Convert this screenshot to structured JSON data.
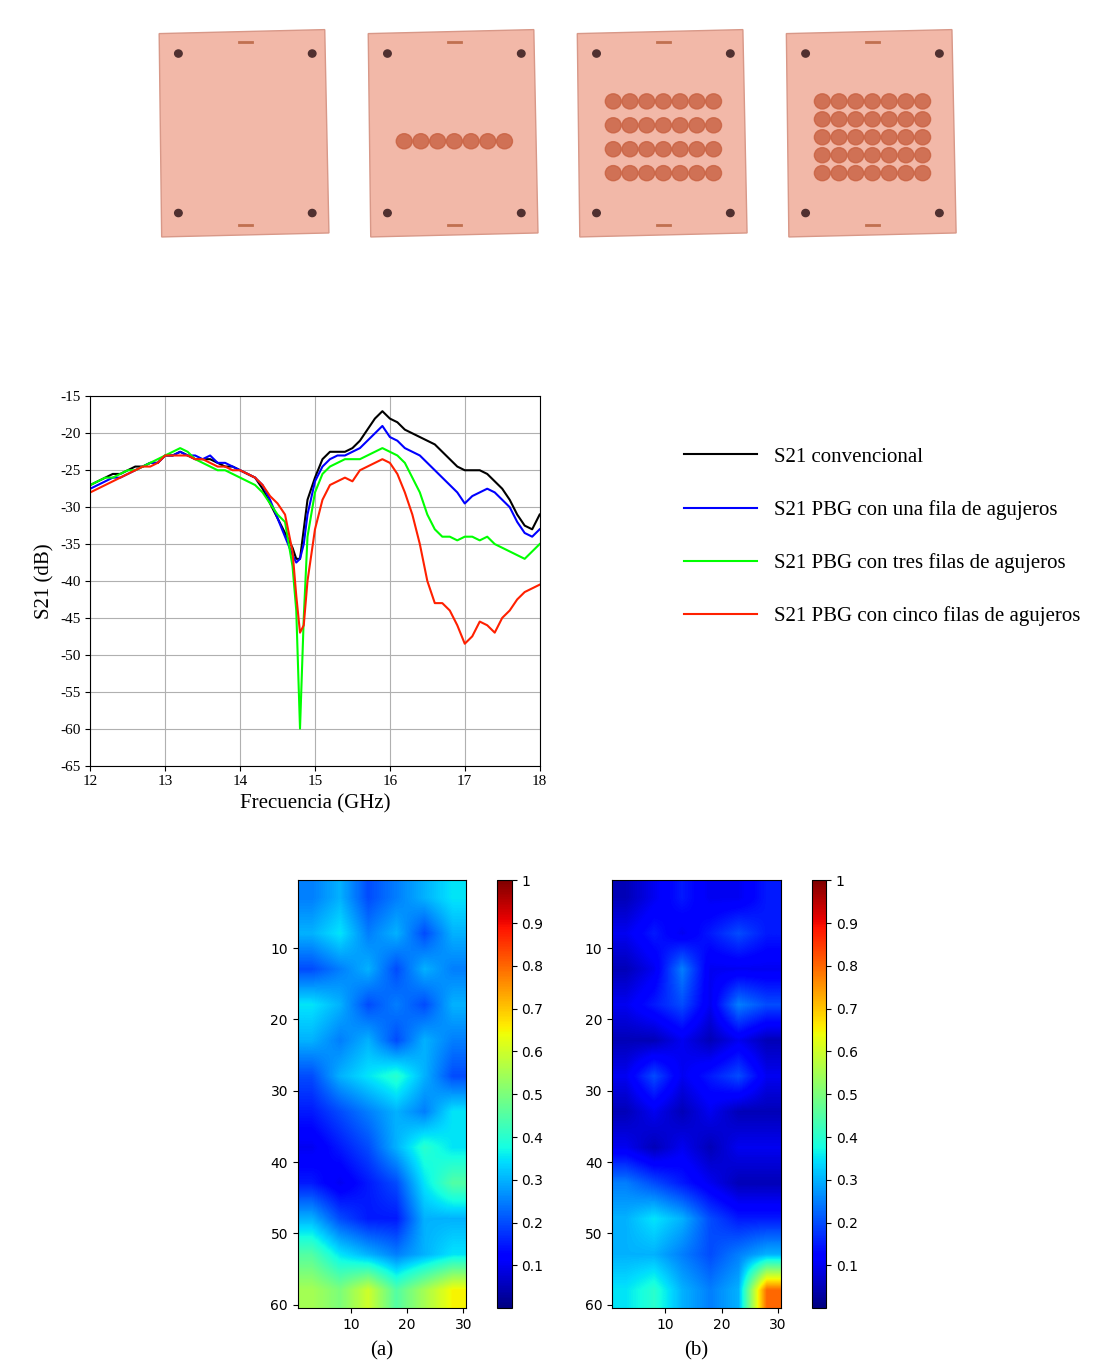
{
  "chart_data": [
    {
      "type": "line",
      "x_label": "Frecuencia (GHz)",
      "y_label": "S21 (dB)",
      "x": [
        12.0,
        12.1,
        12.2,
        12.3,
        12.4,
        12.5,
        12.6,
        12.7,
        12.8,
        12.9,
        13.0,
        13.1,
        13.2,
        13.3,
        13.4,
        13.5,
        13.6,
        13.7,
        13.8,
        13.9,
        14.0,
        14.1,
        14.2,
        14.3,
        14.4,
        14.5,
        14.6,
        14.7,
        14.75,
        14.8,
        14.85,
        14.9,
        15.0,
        15.1,
        15.2,
        15.3,
        15.4,
        15.5,
        15.6,
        15.7,
        15.8,
        15.9,
        16.0,
        16.1,
        16.2,
        16.3,
        16.4,
        16.5,
        16.6,
        16.7,
        16.8,
        16.9,
        17.0,
        17.1,
        17.2,
        17.3,
        17.4,
        17.5,
        17.6,
        17.7,
        17.8,
        17.9,
        18.0
      ],
      "series": [
        {
          "name": "S21 convencional",
          "color": "#000000",
          "values": [
            -27,
            -26.5,
            -26,
            -25.5,
            -25.5,
            -25,
            -24.5,
            -24.5,
            -24,
            -24,
            -23,
            -23,
            -22.5,
            -23,
            -23.5,
            -23.5,
            -23.5,
            -24,
            -24.5,
            -24.5,
            -25,
            -25.5,
            -26,
            -27.5,
            -29.5,
            -31.5,
            -33.5,
            -35.5,
            -37,
            -37,
            -33,
            -29,
            -26,
            -23.5,
            -22.5,
            -22.5,
            -22.5,
            -22,
            -21,
            -19.5,
            -18,
            -17,
            -18,
            -18.5,
            -19.5,
            -20,
            -20.5,
            -21,
            -21.5,
            -22.5,
            -23.5,
            -24.5,
            -25,
            -25,
            -25,
            -25.5,
            -26.5,
            -27.5,
            -29,
            -31,
            -32.5,
            -33,
            -31
          ]
        },
        {
          "name": "S21 PBG con una fila de agujeros",
          "color": "#0000ff",
          "values": [
            -27.5,
            -27,
            -26.5,
            -26,
            -26,
            -25.5,
            -25,
            -24.5,
            -24,
            -24,
            -23,
            -23,
            -22.5,
            -23,
            -23,
            -23.5,
            -23,
            -24,
            -24,
            -24.5,
            -25,
            -25.5,
            -26,
            -27,
            -29,
            -31.5,
            -34,
            -36.5,
            -37.5,
            -37,
            -35,
            -31,
            -26.5,
            -24.5,
            -23.5,
            -23,
            -23,
            -22.5,
            -22,
            -21,
            -20,
            -19,
            -20.5,
            -21,
            -22,
            -22.5,
            -23,
            -24,
            -25,
            -26,
            -27,
            -28,
            -29.5,
            -28.5,
            -28,
            -27.5,
            -28,
            -29,
            -30,
            -32,
            -33.5,
            -34,
            -33
          ]
        },
        {
          "name": "S21 PBG con tres filas de agujeros",
          "color": "#00ff00",
          "values": [
            -27,
            -26.5,
            -26,
            -26,
            -25.5,
            -25,
            -25,
            -24.5,
            -24,
            -23.5,
            -23,
            -22.5,
            -22,
            -22.5,
            -23.5,
            -24,
            -24.5,
            -25,
            -25,
            -25.5,
            -26,
            -26.5,
            -27,
            -28,
            -29.5,
            -31,
            -32,
            -38,
            -44,
            -60,
            -45,
            -34,
            -28,
            -25.5,
            -24.5,
            -24,
            -23.5,
            -23.5,
            -23.5,
            -23,
            -22.5,
            -22,
            -22.5,
            -23,
            -24,
            -26,
            -28,
            -31,
            -33,
            -34,
            -34,
            -34.5,
            -34,
            -34,
            -34.5,
            -34,
            -35,
            -35.5,
            -36,
            -36.5,
            -37,
            -36,
            -35
          ]
        },
        {
          "name": "S21 PBG con cinco filas de agujeros",
          "color": "#ff2000",
          "values": [
            -28,
            -27.5,
            -27,
            -26.5,
            -26,
            -25.5,
            -25,
            -24.5,
            -24.5,
            -24,
            -23,
            -23,
            -23,
            -23,
            -23.5,
            -23.5,
            -24,
            -24.5,
            -24.5,
            -25,
            -25,
            -25.5,
            -26,
            -27,
            -28.5,
            -29.5,
            -31,
            -36,
            -42,
            -47,
            -46,
            -40,
            -33,
            -29,
            -27,
            -26.5,
            -26,
            -26.5,
            -25,
            -24.5,
            -24,
            -23.5,
            -24,
            -25.5,
            -28,
            -31,
            -35,
            -40,
            -43,
            -43,
            -44,
            -46,
            -48.5,
            -47.5,
            -45.5,
            -46,
            -47,
            -45,
            -44,
            -42.5,
            -41.5,
            -41,
            -40.5
          ]
        }
      ],
      "xlim": [
        12,
        18
      ],
      "xticks": [
        12,
        13,
        14,
        15,
        16,
        17,
        18
      ],
      "ylim": [
        -65,
        -15
      ],
      "yticks": [
        -65,
        -60,
        -55,
        -50,
        -45,
        -40,
        -35,
        -30,
        -25,
        -20,
        -15
      ],
      "grid": true,
      "legend": "center left"
    },
    {
      "type": "heatmap",
      "caption": "(a)",
      "cells": [
        [
          0.25,
          0.3,
          0.2,
          0.25,
          0.3,
          0.35
        ],
        [
          0.3,
          0.35,
          0.25,
          0.3,
          0.2,
          0.3
        ],
        [
          0.2,
          0.25,
          0.3,
          0.2,
          0.3,
          0.25
        ],
        [
          0.35,
          0.3,
          0.2,
          0.25,
          0.2,
          0.3
        ],
        [
          0.3,
          0.25,
          0.3,
          0.2,
          0.3,
          0.25
        ],
        [
          0.2,
          0.3,
          0.35,
          0.4,
          0.3,
          0.2
        ],
        [
          0.15,
          0.2,
          0.25,
          0.3,
          0.25,
          0.35
        ],
        [
          0.1,
          0.15,
          0.2,
          0.3,
          0.4,
          0.35
        ],
        [
          0.15,
          0.1,
          0.15,
          0.2,
          0.35,
          0.45
        ],
        [
          0.3,
          0.2,
          0.15,
          0.15,
          0.3,
          0.3
        ],
        [
          0.45,
          0.35,
          0.3,
          0.25,
          0.3,
          0.35
        ],
        [
          0.55,
          0.5,
          0.6,
          0.45,
          0.55,
          0.65
        ]
      ],
      "xlim": [
        0.5,
        30.5
      ],
      "xticks": [
        10,
        20,
        30
      ],
      "ylim": [
        60.5,
        0.5
      ],
      "yticks": [
        10,
        20,
        30,
        40,
        50,
        60
      ],
      "colorbar_range": [
        0,
        1
      ],
      "colorbar_ticks": [
        0.1,
        0.2,
        0.3,
        0.4,
        0.5,
        0.6,
        0.7,
        0.8,
        0.9,
        1
      ]
    },
    {
      "type": "heatmap",
      "caption": "(b)",
      "cells": [
        [
          0.05,
          0.1,
          0.15,
          0.1,
          0.1,
          0.15
        ],
        [
          0.1,
          0.15,
          0.1,
          0.15,
          0.2,
          0.15
        ],
        [
          0.05,
          0.1,
          0.25,
          0.1,
          0.1,
          0.1
        ],
        [
          0.1,
          0.15,
          0.2,
          0.1,
          0.25,
          0.2
        ],
        [
          0.05,
          0.05,
          0.1,
          0.05,
          0.1,
          0.05
        ],
        [
          0.1,
          0.2,
          0.1,
          0.15,
          0.2,
          0.1
        ],
        [
          0.05,
          0.1,
          0.05,
          0.1,
          0.05,
          0.05
        ],
        [
          0.1,
          0.05,
          0.1,
          0.05,
          0.1,
          0.1
        ],
        [
          0.25,
          0.2,
          0.15,
          0.1,
          0.05,
          0.05
        ],
        [
          0.3,
          0.35,
          0.3,
          0.2,
          0.15,
          0.15
        ],
        [
          0.3,
          0.3,
          0.25,
          0.2,
          0.25,
          0.3
        ],
        [
          0.35,
          0.4,
          0.3,
          0.25,
          0.3,
          0.8
        ]
      ],
      "xlim": [
        0.5,
        30.5
      ],
      "xticks": [
        10,
        20,
        30
      ],
      "ylim": [
        60.5,
        0.5
      ],
      "yticks": [
        10,
        20,
        30,
        40,
        50,
        60
      ],
      "colorbar_range": [
        0,
        1
      ],
      "colorbar_ticks": [
        0.1,
        0.2,
        0.3,
        0.4,
        0.5,
        0.6,
        0.7,
        0.8,
        0.9,
        1
      ]
    }
  ]
}
